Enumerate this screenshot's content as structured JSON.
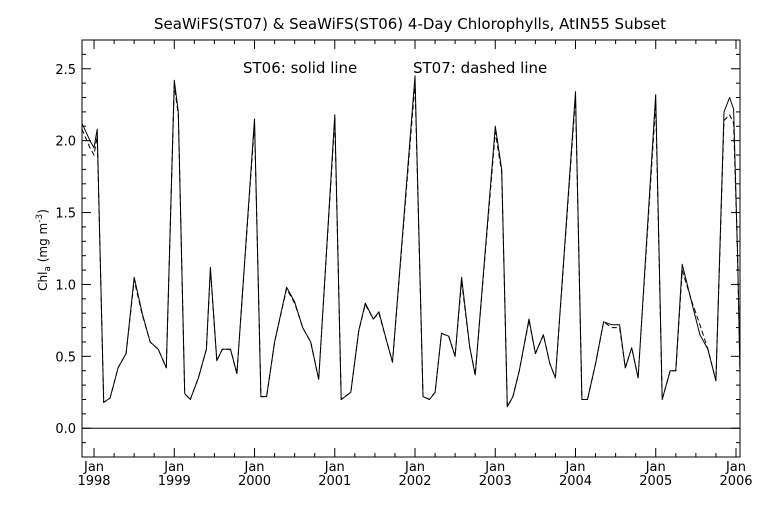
{
  "chart_data": {
    "type": "line",
    "title": "SeaWiFS(ST07) & SeaWiFS(ST06) 4-Day Chlorophylls, AtIN55 Subset",
    "annotation_left": "ST06: solid line",
    "annotation_right": "ST07: dashed line",
    "ylabel": {
      "main": "Chl",
      "sub": "a",
      "unit_open": " (mg m",
      "unit_sup": "-3",
      "unit_close": ")"
    },
    "xlim": [
      1997.85,
      2006.05
    ],
    "ylim": [
      -0.2,
      2.7
    ],
    "grid": false,
    "zero_line": true,
    "y_ticks": [
      {
        "value": 0.0,
        "label": "0.0"
      },
      {
        "value": 0.5,
        "label": "0.5"
      },
      {
        "value": 1.0,
        "label": "1.0"
      },
      {
        "value": 1.5,
        "label": "1.5"
      },
      {
        "value": 2.0,
        "label": "2.0"
      },
      {
        "value": 2.5,
        "label": "2.5"
      }
    ],
    "x_ticks": [
      {
        "value": 1998,
        "month": "Jan",
        "year": "1998"
      },
      {
        "value": 1999,
        "month": "Jan",
        "year": "1999"
      },
      {
        "value": 2000,
        "month": "Jan",
        "year": "2000"
      },
      {
        "value": 2001,
        "month": "Jan",
        "year": "2001"
      },
      {
        "value": 2002,
        "month": "Jan",
        "year": "2002"
      },
      {
        "value": 2003,
        "month": "Jan",
        "year": "2003"
      },
      {
        "value": 2004,
        "month": "Jan",
        "year": "2004"
      },
      {
        "value": 2005,
        "month": "Jan",
        "year": "2005"
      },
      {
        "value": 2006,
        "month": "Jan",
        "year": "2006"
      }
    ],
    "series": [
      {
        "name": "ST06",
        "style": "solid",
        "color": "#000000",
        "points": [
          [
            1997.85,
            2.12
          ],
          [
            1997.95,
            2.0
          ],
          [
            1998.0,
            1.95
          ],
          [
            1998.04,
            2.08
          ],
          [
            1998.08,
            1.1
          ],
          [
            1998.12,
            0.18
          ],
          [
            1998.2,
            0.21
          ],
          [
            1998.3,
            0.42
          ],
          [
            1998.4,
            0.52
          ],
          [
            1998.5,
            1.05
          ],
          [
            1998.6,
            0.8
          ],
          [
            1998.7,
            0.6
          ],
          [
            1998.8,
            0.55
          ],
          [
            1998.9,
            0.42
          ],
          [
            1999.0,
            2.42
          ],
          [
            1999.05,
            2.2
          ],
          [
            1999.13,
            0.24
          ],
          [
            1999.2,
            0.2
          ],
          [
            1999.3,
            0.35
          ],
          [
            1999.4,
            0.55
          ],
          [
            1999.45,
            1.12
          ],
          [
            1999.53,
            0.47
          ],
          [
            1999.6,
            0.55
          ],
          [
            1999.7,
            0.55
          ],
          [
            1999.78,
            0.38
          ],
          [
            2000.0,
            2.15
          ],
          [
            2000.08,
            0.22
          ],
          [
            2000.15,
            0.22
          ],
          [
            2000.25,
            0.6
          ],
          [
            2000.4,
            0.98
          ],
          [
            2000.5,
            0.88
          ],
          [
            2000.6,
            0.7
          ],
          [
            2000.7,
            0.6
          ],
          [
            2000.8,
            0.34
          ],
          [
            2001.0,
            2.18
          ],
          [
            2001.08,
            0.2
          ],
          [
            2001.2,
            0.25
          ],
          [
            2001.3,
            0.68
          ],
          [
            2001.38,
            0.87
          ],
          [
            2001.48,
            0.76
          ],
          [
            2001.55,
            0.81
          ],
          [
            2001.65,
            0.6
          ],
          [
            2001.72,
            0.46
          ],
          [
            2002.0,
            2.45
          ],
          [
            2002.1,
            0.22
          ],
          [
            2002.18,
            0.2
          ],
          [
            2002.25,
            0.25
          ],
          [
            2002.33,
            0.66
          ],
          [
            2002.42,
            0.64
          ],
          [
            2002.5,
            0.5
          ],
          [
            2002.58,
            1.05
          ],
          [
            2002.68,
            0.57
          ],
          [
            2002.75,
            0.37
          ],
          [
            2003.0,
            2.1
          ],
          [
            2003.08,
            1.8
          ],
          [
            2003.15,
            0.15
          ],
          [
            2003.22,
            0.22
          ],
          [
            2003.3,
            0.4
          ],
          [
            2003.42,
            0.76
          ],
          [
            2003.5,
            0.52
          ],
          [
            2003.6,
            0.65
          ],
          [
            2003.68,
            0.45
          ],
          [
            2003.75,
            0.35
          ],
          [
            2004.0,
            2.34
          ],
          [
            2004.08,
            0.2
          ],
          [
            2004.15,
            0.2
          ],
          [
            2004.25,
            0.45
          ],
          [
            2004.35,
            0.74
          ],
          [
            2004.45,
            0.72
          ],
          [
            2004.55,
            0.72
          ],
          [
            2004.62,
            0.42
          ],
          [
            2004.7,
            0.56
          ],
          [
            2004.78,
            0.35
          ],
          [
            2005.0,
            2.32
          ],
          [
            2005.08,
            0.2
          ],
          [
            2005.18,
            0.4
          ],
          [
            2005.25,
            0.4
          ],
          [
            2005.33,
            1.14
          ],
          [
            2005.45,
            0.87
          ],
          [
            2005.55,
            0.65
          ],
          [
            2005.65,
            0.55
          ],
          [
            2005.75,
            0.33
          ],
          [
            2005.85,
            2.2
          ],
          [
            2005.92,
            2.3
          ],
          [
            2005.97,
            2.22
          ],
          [
            2006.02,
            1.2
          ],
          [
            2006.05,
            0.38
          ]
        ]
      },
      {
        "name": "ST07",
        "style": "dashed",
        "color": "#000000",
        "points": [
          [
            1997.85,
            2.08
          ],
          [
            1997.95,
            1.95
          ],
          [
            1998.0,
            1.9
          ],
          [
            1998.04,
            2.03
          ],
          [
            1998.08,
            1.1
          ],
          [
            1998.12,
            0.18
          ],
          [
            1998.2,
            0.21
          ],
          [
            1998.3,
            0.42
          ],
          [
            1998.4,
            0.52
          ],
          [
            1998.5,
            1.03
          ],
          [
            1998.6,
            0.79
          ],
          [
            1998.7,
            0.6
          ],
          [
            1998.8,
            0.55
          ],
          [
            1998.9,
            0.42
          ],
          [
            1999.0,
            2.38
          ],
          [
            1999.05,
            2.18
          ],
          [
            1999.13,
            0.24
          ],
          [
            1999.2,
            0.2
          ],
          [
            1999.3,
            0.35
          ],
          [
            1999.4,
            0.55
          ],
          [
            1999.45,
            1.1
          ],
          [
            1999.53,
            0.47
          ],
          [
            1999.6,
            0.55
          ],
          [
            1999.7,
            0.55
          ],
          [
            1999.78,
            0.38
          ],
          [
            2000.0,
            2.12
          ],
          [
            2000.08,
            0.22
          ],
          [
            2000.15,
            0.22
          ],
          [
            2000.25,
            0.6
          ],
          [
            2000.4,
            0.97
          ],
          [
            2000.5,
            0.87
          ],
          [
            2000.6,
            0.7
          ],
          [
            2000.7,
            0.6
          ],
          [
            2000.8,
            0.34
          ],
          [
            2001.0,
            2.15
          ],
          [
            2001.08,
            0.2
          ],
          [
            2001.2,
            0.25
          ],
          [
            2001.3,
            0.68
          ],
          [
            2001.38,
            0.86
          ],
          [
            2001.48,
            0.76
          ],
          [
            2001.55,
            0.8
          ],
          [
            2001.65,
            0.6
          ],
          [
            2001.72,
            0.46
          ],
          [
            2002.0,
            2.4
          ],
          [
            2002.1,
            0.22
          ],
          [
            2002.18,
            0.2
          ],
          [
            2002.25,
            0.25
          ],
          [
            2002.33,
            0.66
          ],
          [
            2002.42,
            0.64
          ],
          [
            2002.5,
            0.5
          ],
          [
            2002.58,
            1.02
          ],
          [
            2002.68,
            0.57
          ],
          [
            2002.75,
            0.37
          ],
          [
            2003.0,
            2.06
          ],
          [
            2003.08,
            1.78
          ],
          [
            2003.15,
            0.15
          ],
          [
            2003.22,
            0.22
          ],
          [
            2003.3,
            0.4
          ],
          [
            2003.42,
            0.75
          ],
          [
            2003.5,
            0.52
          ],
          [
            2003.6,
            0.65
          ],
          [
            2003.68,
            0.45
          ],
          [
            2003.75,
            0.35
          ],
          [
            2004.0,
            2.3
          ],
          [
            2004.08,
            0.2
          ],
          [
            2004.15,
            0.2
          ],
          [
            2004.25,
            0.45
          ],
          [
            2004.35,
            0.74
          ],
          [
            2004.45,
            0.7
          ],
          [
            2004.55,
            0.7
          ],
          [
            2004.62,
            0.42
          ],
          [
            2004.7,
            0.56
          ],
          [
            2004.78,
            0.35
          ],
          [
            2005.0,
            2.26
          ],
          [
            2005.08,
            0.2
          ],
          [
            2005.18,
            0.4
          ],
          [
            2005.25,
            0.4
          ],
          [
            2005.33,
            1.1
          ],
          [
            2005.45,
            0.88
          ],
          [
            2005.55,
            0.72
          ],
          [
            2005.65,
            0.55
          ],
          [
            2005.75,
            0.33
          ],
          [
            2005.85,
            2.14
          ],
          [
            2005.92,
            2.18
          ],
          [
            2005.97,
            2.12
          ],
          [
            2006.02,
            1.2
          ],
          [
            2006.05,
            0.38
          ]
        ]
      }
    ]
  }
}
